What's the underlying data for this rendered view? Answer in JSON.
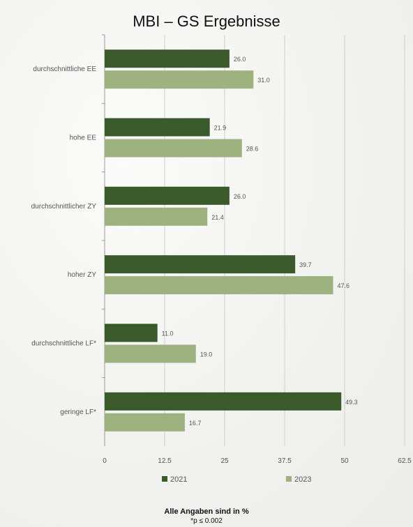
{
  "title": "MBI – GS Ergebnisse",
  "footnote_main": "Alle Angaben sind in %",
  "footnote_sig": "*p ≤ 0.002",
  "colors": {
    "s2021": "#3a5a2c",
    "s2023": "#9db27f",
    "grid": "#cfcfcf",
    "axis": "#9a9a9a",
    "text": "#555555"
  },
  "chart_data": {
    "type": "bar",
    "orientation": "horizontal",
    "title": "MBI – GS Ergebnisse",
    "categories": [
      "durchschnittliche EE",
      "hohe EE",
      "durchschnittlicher ZY",
      "hoher ZY",
      "durchschnittliche LF*",
      "geringe LF*"
    ],
    "series": [
      {
        "name": "2021",
        "values": [
          26.0,
          21.9,
          26.0,
          39.7,
          11.0,
          49.3
        ]
      },
      {
        "name": "2023",
        "values": [
          31.0,
          28.6,
          21.4,
          47.6,
          19.0,
          16.7
        ]
      }
    ],
    "value_labels": [
      [
        "26.0",
        "21.9",
        "26.0",
        "39.7",
        "11.0",
        "49.3"
      ],
      [
        "31.0",
        "28.6",
        "21.4",
        "47.6",
        "19.0",
        "16.7"
      ]
    ],
    "xlim": [
      0,
      62.5
    ],
    "xticks": [
      0,
      12.5,
      25,
      37.5,
      50,
      62.5
    ],
    "xtick_labels": [
      "0",
      "12.5",
      "25",
      "37.5",
      "50",
      "62.5"
    ],
    "grid": true,
    "legend": "bottom"
  }
}
